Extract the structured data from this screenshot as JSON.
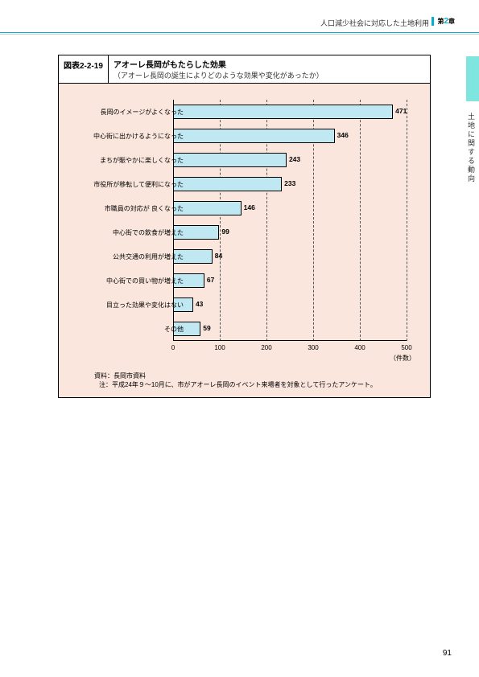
{
  "header": {
    "text": "人口減少社会に対応した土地利用",
    "chapter_prefix": "第",
    "chapter_num": "2",
    "chapter_suffix": "章"
  },
  "side_text": "土地に関する動向",
  "figure": {
    "num": "図表2-2-19",
    "title": "アオーレ長岡がもたらした効果",
    "subtitle": "（アオーレ長岡の誕生によりどのような効果や変化があったか）"
  },
  "chart": {
    "type": "bar",
    "categories": [
      "長岡のイメージがよくなった",
      "中心街に出かけるようになった",
      "まちが賑やかに楽しくなった",
      "市役所が移転して便利になった",
      "市職員の対応が 良くなった",
      "中心街での飲食が増えた",
      "公共交通の利用が増えた",
      "中心街での買い物が増えた",
      "目立った効果や変化はない",
      "その他"
    ],
    "values": [
      471,
      346,
      243,
      233,
      146,
      99,
      84,
      67,
      43,
      59
    ],
    "xlim": [
      0,
      500
    ],
    "xtick_step": 100,
    "xlabel": "（件数）",
    "bar_color": "#bfe8f2",
    "background": "#fae6dc"
  },
  "notes": {
    "source": "資料：長岡市資料",
    "note": "注：平成24年９〜10月に、市がアオーレ長岡のイベント来場者を対象として行ったアンケート。"
  },
  "page_num": "91"
}
